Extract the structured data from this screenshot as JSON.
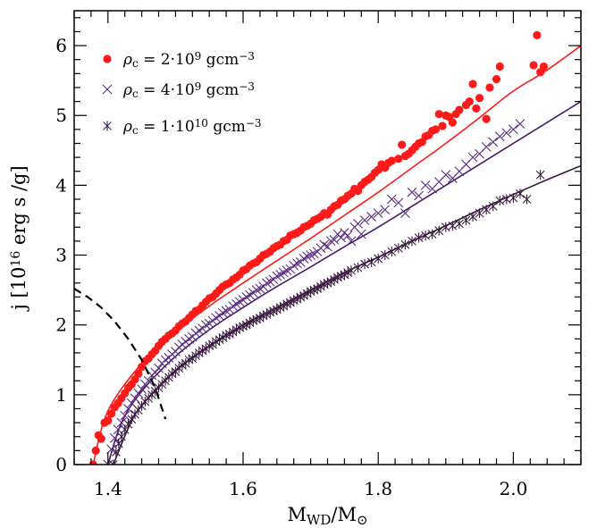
{
  "chart_data": {
    "type": "scatter",
    "title": "",
    "xlabel": "M_WD/M⊙",
    "ylabel": "j [10^16 erg s /g]",
    "xlim": [
      1.35,
      2.1
    ],
    "ylim": [
      0,
      6.5
    ],
    "x_ticks": [
      1.4,
      1.6,
      1.8,
      2.0
    ],
    "x_tick_labels": [
      "1.4",
      "1.6",
      "1.8",
      "2.0"
    ],
    "y_ticks": [
      0,
      1,
      2,
      3,
      4,
      5,
      6
    ],
    "y_tick_labels": [
      "0",
      "1",
      "2",
      "3",
      "4",
      "5",
      "6"
    ],
    "legend_position": "top-left",
    "series": [
      {
        "name": "ρc = 2·10^9 gcm−3",
        "marker": "circle",
        "color": "#ff1a1a",
        "fit_color": "#ff1a1a",
        "m0": 1.378,
        "fit_x": [
          1.378,
          1.4,
          1.45,
          1.5,
          1.55,
          1.6,
          1.65,
          1.7,
          1.75,
          1.8,
          1.85,
          1.9,
          1.95,
          2.0,
          2.05,
          2.1
        ],
        "fit_y": [
          0.0,
          0.77,
          1.45,
          1.9,
          2.27,
          2.6,
          2.92,
          3.24,
          3.57,
          3.9,
          4.25,
          4.6,
          4.97,
          5.35,
          5.65,
          6.0
        ],
        "points_x": [
          1.378,
          1.382,
          1.386,
          1.39,
          1.395,
          1.4,
          1.405,
          1.41,
          1.415,
          1.42,
          1.425,
          1.43,
          1.435,
          1.44,
          1.445,
          1.45,
          1.455,
          1.46,
          1.465,
          1.47,
          1.475,
          1.48,
          1.485,
          1.49,
          1.495,
          1.5,
          1.505,
          1.51,
          1.515,
          1.52,
          1.525,
          1.53,
          1.535,
          1.54,
          1.545,
          1.55,
          1.555,
          1.56,
          1.565,
          1.57,
          1.575,
          1.58,
          1.585,
          1.59,
          1.595,
          1.6,
          1.605,
          1.61,
          1.615,
          1.62,
          1.625,
          1.63,
          1.635,
          1.64,
          1.645,
          1.65,
          1.655,
          1.66,
          1.665,
          1.67,
          1.675,
          1.68,
          1.685,
          1.69,
          1.695,
          1.7,
          1.705,
          1.71,
          1.715,
          1.72,
          1.725,
          1.73,
          1.735,
          1.74,
          1.745,
          1.75,
          1.755,
          1.76,
          1.765,
          1.77,
          1.775,
          1.78,
          1.785,
          1.79,
          1.795,
          1.8,
          1.805,
          1.81,
          1.815,
          1.82,
          1.83,
          1.835,
          1.84,
          1.845,
          1.85,
          1.855,
          1.86,
          1.865,
          1.87,
          1.875,
          1.88,
          1.885,
          1.89,
          1.895,
          1.9,
          1.905,
          1.91,
          1.915,
          1.92,
          1.93,
          1.935,
          1.94,
          1.945,
          1.95,
          1.96,
          1.965,
          1.975,
          1.98,
          2.03,
          2.035,
          2.04,
          2.045
        ],
        "points_y": [
          0.0,
          0.2,
          0.42,
          0.37,
          0.6,
          0.63,
          0.73,
          0.82,
          0.88,
          0.95,
          1.02,
          1.1,
          1.15,
          1.22,
          1.3,
          1.4,
          1.48,
          1.52,
          1.58,
          1.63,
          1.7,
          1.76,
          1.8,
          1.85,
          1.88,
          1.92,
          1.98,
          2.02,
          2.05,
          2.1,
          2.15,
          2.2,
          2.22,
          2.28,
          2.33,
          2.38,
          2.4,
          2.45,
          2.5,
          2.55,
          2.58,
          2.6,
          2.65,
          2.68,
          2.72,
          2.78,
          2.8,
          2.85,
          2.88,
          2.9,
          2.95,
          3.0,
          3.02,
          3.05,
          3.1,
          3.13,
          3.15,
          3.2,
          3.22,
          3.28,
          3.3,
          3.32,
          3.35,
          3.4,
          3.42,
          3.45,
          3.5,
          3.52,
          3.55,
          3.6,
          3.58,
          3.65,
          3.7,
          3.72,
          3.78,
          3.8,
          3.85,
          3.88,
          3.95,
          3.92,
          4.0,
          4.05,
          4.08,
          4.12,
          4.18,
          4.22,
          4.3,
          4.25,
          4.32,
          4.35,
          4.38,
          4.58,
          4.42,
          4.45,
          4.5,
          4.55,
          4.6,
          4.62,
          4.7,
          4.72,
          4.78,
          4.8,
          5.02,
          4.85,
          5.0,
          4.98,
          4.9,
          5.02,
          5.08,
          5.15,
          5.2,
          5.45,
          5.1,
          5.25,
          4.95,
          5.4,
          5.52,
          5.7,
          5.72,
          6.15,
          5.62,
          5.7,
          5.48
        ],
        "points_y_extra": []
      },
      {
        "name": "ρc = 4·10^9 gcm−3",
        "marker": "cross",
        "color": "#5a2d82",
        "fit_color": "#4a1a6b",
        "m0": 1.4,
        "fit_x": [
          1.4,
          1.42,
          1.45,
          1.5,
          1.55,
          1.6,
          1.65,
          1.7,
          1.75,
          1.8,
          1.85,
          1.9,
          1.95,
          2.0,
          2.05,
          2.1
        ],
        "fit_y": [
          0.0,
          0.6,
          1.05,
          1.55,
          1.93,
          2.25,
          2.55,
          2.83,
          3.12,
          3.4,
          3.7,
          4.0,
          4.3,
          4.6,
          4.9,
          5.2
        ],
        "points_x": [
          1.4,
          1.405,
          1.41,
          1.415,
          1.42,
          1.425,
          1.43,
          1.435,
          1.44,
          1.445,
          1.45,
          1.455,
          1.46,
          1.465,
          1.47,
          1.475,
          1.48,
          1.485,
          1.49,
          1.495,
          1.5,
          1.505,
          1.51,
          1.515,
          1.52,
          1.525,
          1.53,
          1.535,
          1.54,
          1.545,
          1.55,
          1.555,
          1.56,
          1.565,
          1.57,
          1.575,
          1.58,
          1.585,
          1.59,
          1.595,
          1.6,
          1.605,
          1.61,
          1.615,
          1.62,
          1.625,
          1.63,
          1.635,
          1.64,
          1.645,
          1.65,
          1.655,
          1.66,
          1.665,
          1.67,
          1.675,
          1.68,
          1.685,
          1.69,
          1.695,
          1.7,
          1.705,
          1.71,
          1.715,
          1.72,
          1.725,
          1.73,
          1.735,
          1.74,
          1.745,
          1.75,
          1.755,
          1.76,
          1.765,
          1.77,
          1.775,
          1.78,
          1.79,
          1.8,
          1.81,
          1.82,
          1.83,
          1.84,
          1.85,
          1.86,
          1.87,
          1.88,
          1.89,
          1.9,
          1.91,
          1.92,
          1.93,
          1.94,
          1.95,
          1.96,
          1.97,
          1.98,
          1.99,
          2.0,
          2.01
        ],
        "points_y": [
          0.0,
          0.22,
          0.38,
          0.5,
          0.6,
          0.7,
          0.8,
          0.88,
          0.95,
          1.02,
          1.08,
          1.15,
          1.2,
          1.28,
          1.32,
          1.38,
          1.45,
          1.5,
          1.53,
          1.58,
          1.62,
          1.68,
          1.72,
          1.76,
          1.8,
          1.83,
          1.88,
          1.92,
          1.95,
          2.0,
          2.02,
          2.06,
          2.1,
          2.13,
          2.17,
          2.2,
          2.22,
          2.27,
          2.3,
          2.33,
          2.36,
          2.4,
          2.43,
          2.46,
          2.5,
          2.52,
          2.55,
          2.6,
          2.62,
          2.65,
          2.7,
          2.72,
          2.75,
          2.78,
          2.8,
          2.85,
          2.88,
          2.9,
          2.95,
          2.98,
          3.0,
          3.02,
          3.05,
          3.1,
          3.15,
          3.12,
          3.2,
          3.22,
          3.3,
          3.25,
          3.32,
          3.28,
          3.2,
          3.4,
          3.45,
          3.3,
          3.5,
          3.55,
          3.6,
          3.65,
          3.8,
          3.75,
          3.6,
          3.9,
          3.85,
          4.0,
          3.95,
          4.05,
          4.15,
          4.1,
          4.2,
          4.3,
          4.4,
          4.45,
          4.55,
          4.62,
          4.7,
          4.75,
          4.8,
          4.88
        ],
        "points_y_extra": []
      },
      {
        "name": "ρc = 1·10^10 gcm−3",
        "marker": "asterisk",
        "color": "#3a1a40",
        "fit_color": "#3a1a40",
        "m0": 1.408,
        "fit_x": [
          1.408,
          1.43,
          1.45,
          1.5,
          1.55,
          1.6,
          1.65,
          1.7,
          1.75,
          1.8,
          1.85,
          1.9,
          1.95,
          2.0,
          2.05,
          2.1
        ],
        "fit_y": [
          0.0,
          0.52,
          0.85,
          1.35,
          1.7,
          2.0,
          2.25,
          2.5,
          2.75,
          2.97,
          3.2,
          3.42,
          3.65,
          3.87,
          4.08,
          4.28
        ],
        "points_x": [
          1.408,
          1.412,
          1.416,
          1.42,
          1.425,
          1.43,
          1.435,
          1.44,
          1.445,
          1.45,
          1.455,
          1.46,
          1.465,
          1.47,
          1.475,
          1.48,
          1.485,
          1.49,
          1.495,
          1.5,
          1.505,
          1.51,
          1.515,
          1.52,
          1.525,
          1.53,
          1.535,
          1.54,
          1.545,
          1.55,
          1.555,
          1.56,
          1.565,
          1.57,
          1.575,
          1.58,
          1.585,
          1.59,
          1.595,
          1.6,
          1.605,
          1.61,
          1.615,
          1.62,
          1.625,
          1.63,
          1.635,
          1.64,
          1.645,
          1.65,
          1.655,
          1.66,
          1.665,
          1.67,
          1.675,
          1.68,
          1.685,
          1.69,
          1.695,
          1.7,
          1.705,
          1.71,
          1.715,
          1.72,
          1.725,
          1.73,
          1.735,
          1.74,
          1.745,
          1.75,
          1.755,
          1.76,
          1.77,
          1.78,
          1.79,
          1.8,
          1.81,
          1.82,
          1.83,
          1.84,
          1.85,
          1.86,
          1.87,
          1.88,
          1.89,
          1.9,
          1.91,
          1.92,
          1.93,
          1.94,
          1.95,
          1.96,
          1.97,
          1.98,
          1.99,
          2.0,
          2.01,
          2.02,
          2.04
        ],
        "points_y": [
          0.0,
          0.18,
          0.3,
          0.4,
          0.5,
          0.58,
          0.65,
          0.72,
          0.78,
          0.84,
          0.9,
          0.95,
          1.0,
          1.05,
          1.1,
          1.15,
          1.2,
          1.25,
          1.3,
          1.33,
          1.38,
          1.42,
          1.45,
          1.5,
          1.52,
          1.56,
          1.6,
          1.63,
          1.66,
          1.7,
          1.72,
          1.76,
          1.79,
          1.82,
          1.85,
          1.87,
          1.9,
          1.93,
          1.96,
          1.98,
          2.0,
          2.03,
          2.06,
          2.08,
          2.1,
          2.13,
          2.15,
          2.18,
          2.2,
          2.22,
          2.25,
          2.27,
          2.3,
          2.32,
          2.35,
          2.37,
          2.4,
          2.42,
          2.45,
          2.48,
          2.5,
          2.52,
          2.55,
          2.58,
          2.6,
          2.62,
          2.65,
          2.68,
          2.7,
          2.72,
          2.75,
          2.78,
          2.82,
          2.87,
          2.9,
          2.95,
          3.0,
          3.05,
          3.1,
          3.15,
          3.2,
          3.25,
          3.28,
          3.3,
          3.35,
          3.4,
          3.42,
          3.45,
          3.5,
          3.55,
          3.6,
          3.65,
          3.7,
          3.78,
          3.8,
          3.82,
          3.88,
          3.8,
          4.15
        ],
        "points_y_extra": []
      }
    ],
    "dashed_curve": {
      "x": [
        1.35,
        1.37,
        1.39,
        1.41,
        1.43,
        1.45,
        1.46,
        1.47,
        1.475,
        1.48,
        1.483,
        1.485
      ],
      "y": [
        2.52,
        2.4,
        2.25,
        2.05,
        1.8,
        1.5,
        1.3,
        1.1,
        0.95,
        0.8,
        0.72,
        0.65
      ],
      "color": "#000000"
    }
  }
}
